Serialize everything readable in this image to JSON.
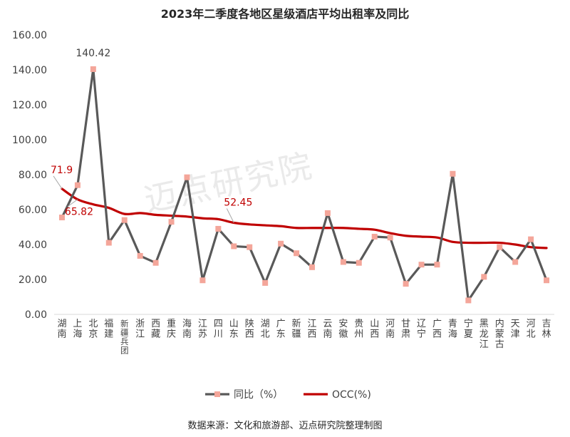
{
  "chart_data": {
    "type": "line",
    "title": "2023年二季度各地区星级酒店平均出租率及同比",
    "source": "数据来源：文化和旅游部、迈点研究院整理制图",
    "watermark": "迈点研究院",
    "categories": [
      "湖南",
      "上海",
      "北京",
      "福建",
      "新疆兵团",
      "浙江",
      "西藏",
      "重庆",
      "海南",
      "江苏",
      "四川",
      "山东",
      "陕西",
      "湖北",
      "广东",
      "新疆",
      "江西",
      "云南",
      "安徽",
      "贵州",
      "山西",
      "河南",
      "甘肃",
      "辽宁",
      "广西",
      "青海",
      "宁夏",
      "黑龙江",
      "内蒙古",
      "天津",
      "河北",
      "吉林"
    ],
    "ylim": [
      0,
      160
    ],
    "yticks": [
      "0.00",
      "20.00",
      "40.00",
      "60.00",
      "80.00",
      "100.00",
      "120.00",
      "140.00",
      "160.00"
    ],
    "series": [
      {
        "name": "同比（%）",
        "color": "#595959",
        "marker_color": "#f4a69a",
        "values": [
          55.5,
          74.0,
          140.42,
          41.0,
          54.0,
          33.5,
          29.5,
          53.0,
          78.5,
          19.5,
          49.0,
          39.0,
          38.5,
          18.0,
          40.5,
          35.0,
          27.0,
          58.0,
          30.0,
          29.5,
          44.5,
          44.0,
          17.5,
          28.5,
          28.5,
          80.5,
          8.0,
          21.5,
          38.5,
          30.0,
          43.0,
          19.5
        ]
      },
      {
        "name": "OCC(%)",
        "color": "#c00000",
        "values": [
          71.9,
          65.82,
          63.0,
          61.0,
          57.5,
          58.0,
          57.0,
          56.5,
          56.0,
          55.0,
          54.5,
          52.45,
          51.5,
          51.0,
          50.5,
          49.5,
          49.5,
          49.5,
          49.5,
          49.0,
          48.5,
          46.5,
          45.0,
          44.5,
          44.0,
          41.5,
          41.0,
          41.0,
          41.0,
          40.0,
          38.5,
          38.0
        ]
      }
    ],
    "data_labels": [
      {
        "series": 0,
        "index": 2,
        "text": "140.42"
      },
      {
        "series": 1,
        "index": 0,
        "text": "71.9"
      },
      {
        "series": 1,
        "index": 1,
        "text": "65.82"
      },
      {
        "series": 1,
        "index": 11,
        "text": "52.45"
      }
    ],
    "grid": false,
    "legend_position": "bottom"
  }
}
